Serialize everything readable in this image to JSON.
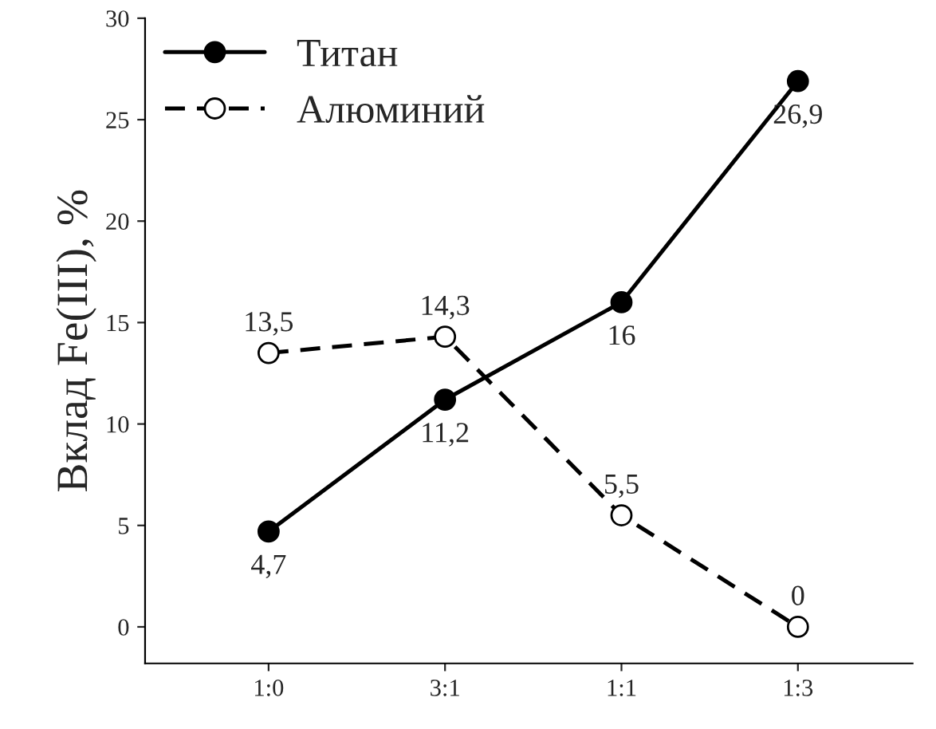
{
  "chart_data": {
    "type": "line",
    "ylabel": "Вклад Fe(III), %",
    "categories": [
      "1:0",
      "3:1",
      "1:1",
      "1:3"
    ],
    "series": [
      {
        "name": "Титан",
        "color": "#000000",
        "line_style": "solid",
        "values": [
          4.7,
          11.2,
          16,
          26.9
        ],
        "value_labels": [
          "4,7",
          "11,2",
          "16",
          "26,9"
        ]
      },
      {
        "name": "Алюминий",
        "color": "#000000",
        "line_style": "dashed",
        "values": [
          13.5,
          14.3,
          5.5,
          0
        ],
        "value_labels": [
          "13,5",
          "14,3",
          "5,5",
          "0"
        ]
      }
    ],
    "ylim": [
      -1.8,
      30
    ],
    "yticks": [
      0,
      5,
      10,
      15,
      20,
      25,
      30
    ],
    "marker": "circle",
    "legend": "top left",
    "grid": false
  }
}
